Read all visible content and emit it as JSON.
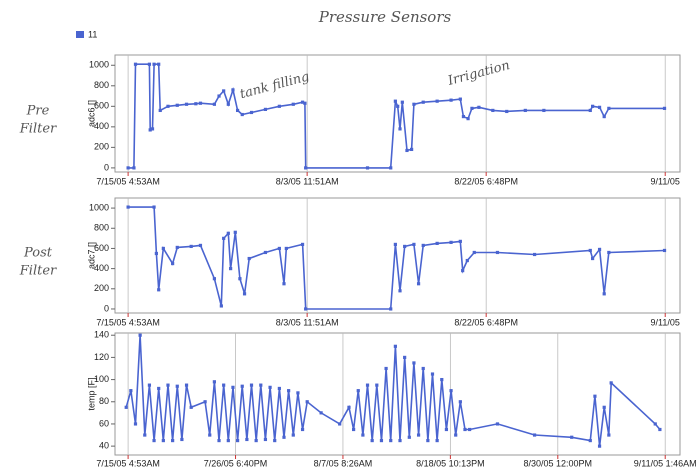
{
  "title": "Pressure Sensors",
  "legend_label": "11",
  "chart_data": [
    {
      "type": "line",
      "panel_label": "Pre Filter",
      "ylabel": "adc6 []",
      "grid": "x",
      "xlim": [
        "2005-07-13T19:00",
        "2005-09-12T16:00"
      ],
      "xticks": [
        {
          "value": "2005-07-15T04:53",
          "label": "7/15/05 4:53AM"
        },
        {
          "value": "2005-08-03T11:51",
          "label": "8/3/05 11:51AM"
        },
        {
          "value": "2005-08-22T18:48",
          "label": "8/22/05 6:48PM"
        },
        {
          "value": "2005-09-11T01:45",
          "label": "9/11/05"
        }
      ],
      "ylim": [
        -40,
        1100
      ],
      "yticks": [
        0,
        200,
        400,
        600,
        800,
        1000
      ],
      "annotations": [
        {
          "text": "tank filling",
          "x": "2005-07-31T00:00",
          "y": 800
        },
        {
          "text": "Irrigation",
          "x": "2005-08-22T00:00",
          "y": 920
        }
      ],
      "series": [
        {
          "name": "11",
          "color": "#4a64d0",
          "x": [
            "2005-07-15T04:53",
            "2005-07-15T20:00",
            "2005-07-16T00:00",
            "2005-07-17T12:00",
            "2005-07-17T14:00",
            "2005-07-17T20:00",
            "2005-07-18T00:00",
            "2005-07-18T12:00",
            "2005-07-18T16:00",
            "2005-07-19T12:00",
            "2005-07-20T12:00",
            "2005-07-21T12:00",
            "2005-07-22T12:00",
            "2005-07-23T00:00",
            "2005-07-24T12:00",
            "2005-07-25T00:00",
            "2005-07-25T12:00",
            "2005-07-26T00:00",
            "2005-07-26T12:00",
            "2005-07-27T00:00",
            "2005-07-27T12:00",
            "2005-07-28T12:00",
            "2005-07-30T00:00",
            "2005-07-31T12:00",
            "2005-08-02T00:00",
            "2005-08-03T00:00",
            "2005-08-03T06:00",
            "2005-08-03T08:00",
            "2005-08-10T00:00",
            "2005-08-12T12:00",
            "2005-08-13T00:00",
            "2005-08-13T06:00",
            "2005-08-13T12:00",
            "2005-08-13T18:00",
            "2005-08-14T06:00",
            "2005-08-14T18:00",
            "2005-08-15T00:00",
            "2005-08-16T00:00",
            "2005-08-17T12:00",
            "2005-08-19T00:00",
            "2005-08-20T00:00",
            "2005-08-20T08:00",
            "2005-08-20T20:00",
            "2005-08-21T06:00",
            "2005-08-22T00:00",
            "2005-08-23T12:00",
            "2005-08-25T00:00",
            "2005-08-27T00:00",
            "2005-08-29T00:00",
            "2005-09-03T00:00",
            "2005-09-03T06:00",
            "2005-09-04T00:00",
            "2005-09-04T12:00",
            "2005-09-05T00:00",
            "2005-09-11T00:00"
          ],
          "values": [
            0,
            0,
            1010,
            1010,
            370,
            380,
            1010,
            1010,
            560,
            600,
            610,
            620,
            625,
            630,
            620,
            700,
            750,
            620,
            760,
            560,
            520,
            540,
            570,
            600,
            620,
            640,
            630,
            0,
            0,
            0,
            650,
            600,
            380,
            640,
            170,
            180,
            620,
            640,
            650,
            660,
            670,
            500,
            480,
            580,
            590,
            560,
            550,
            560,
            560,
            560,
            600,
            590,
            500,
            580,
            580
          ]
        }
      ]
    },
    {
      "type": "line",
      "panel_label": "Post Filter",
      "ylabel": "adc7 []",
      "grid": "x",
      "xlim": [
        "2005-07-13T19:00",
        "2005-09-12T16:00"
      ],
      "xticks": [
        {
          "value": "2005-07-15T04:53",
          "label": "7/15/05 4:53AM"
        },
        {
          "value": "2005-08-03T11:51",
          "label": "8/3/05 11:51AM"
        },
        {
          "value": "2005-08-22T18:48",
          "label": "8/22/05 6:48PM"
        },
        {
          "value": "2005-09-11T01:45",
          "label": "9/11/05"
        }
      ],
      "ylim": [
        -40,
        1100
      ],
      "yticks": [
        0,
        200,
        400,
        600,
        800,
        1000
      ],
      "series": [
        {
          "name": "11",
          "color": "#4a64d0",
          "x": [
            "2005-07-15T04:53",
            "2005-07-18T00:00",
            "2005-07-18T06:00",
            "2005-07-18T12:00",
            "2005-07-19T00:00",
            "2005-07-20T00:00",
            "2005-07-20T12:00",
            "2005-07-22T00:00",
            "2005-07-23T00:00",
            "2005-07-24T12:00",
            "2005-07-25T06:00",
            "2005-07-25T12:00",
            "2005-07-26T00:00",
            "2005-07-26T06:00",
            "2005-07-26T18:00",
            "2005-07-27T06:00",
            "2005-07-27T18:00",
            "2005-07-28T06:00",
            "2005-07-30T00:00",
            "2005-07-31T12:00",
            "2005-08-01T00:00",
            "2005-08-01T06:00",
            "2005-08-03T00:00",
            "2005-08-03T08:00",
            "2005-08-12T12:00",
            "2005-08-13T00:00",
            "2005-08-13T12:00",
            "2005-08-14T00:00",
            "2005-08-15T00:00",
            "2005-08-15T12:00",
            "2005-08-16T00:00",
            "2005-08-17T12:00",
            "2005-08-19T00:00",
            "2005-08-20T00:00",
            "2005-08-20T06:00",
            "2005-08-20T18:00",
            "2005-08-21T12:00",
            "2005-08-24T00:00",
            "2005-08-28T00:00",
            "2005-09-03T00:00",
            "2005-09-03T06:00",
            "2005-09-04T00:00",
            "2005-09-04T12:00",
            "2005-09-05T00:00",
            "2005-09-11T00:00"
          ],
          "values": [
            1010,
            1010,
            550,
            190,
            600,
            450,
            610,
            620,
            630,
            300,
            30,
            700,
            750,
            400,
            760,
            300,
            150,
            500,
            560,
            600,
            250,
            600,
            640,
            0,
            0,
            640,
            180,
            620,
            640,
            250,
            630,
            650,
            660,
            670,
            380,
            480,
            560,
            560,
            540,
            580,
            500,
            590,
            150,
            560,
            580
          ]
        }
      ]
    },
    {
      "type": "line",
      "ylabel": "temp [F]",
      "grid": "x",
      "xlim": [
        "2005-07-13T19:00",
        "2005-09-12T16:00"
      ],
      "xticks": [
        {
          "value": "2005-07-15T04:53",
          "label": "7/15/05 4:53AM"
        },
        {
          "value": "2005-07-26T18:40",
          "label": "7/26/05 6:40PM"
        },
        {
          "value": "2005-08-07T08:26",
          "label": "8/7/05 8:26AM"
        },
        {
          "value": "2005-08-18T22:13",
          "label": "8/18/05 10:13PM"
        },
        {
          "value": "2005-08-30T12:00",
          "label": "8/30/05 12:00PM"
        },
        {
          "value": "2005-09-11T01:46",
          "label": "9/11/05 1:46AM"
        }
      ],
      "ylim": [
        32,
        142
      ],
      "yticks": [
        40,
        60,
        80,
        100,
        120,
        140
      ],
      "series": [
        {
          "name": "11",
          "color": "#4a64d0",
          "x": [
            "2005-07-15T00:00",
            "2005-07-15T12:00",
            "2005-07-16T00:00",
            "2005-07-16T12:00",
            "2005-07-17T00:00",
            "2005-07-17T12:00",
            "2005-07-18T00:00",
            "2005-07-18T12:00",
            "2005-07-19T00:00",
            "2005-07-19T12:00",
            "2005-07-20T00:00",
            "2005-07-20T12:00",
            "2005-07-21T00:00",
            "2005-07-21T12:00",
            "2005-07-22T00:00",
            "2005-07-23T12:00",
            "2005-07-24T00:00",
            "2005-07-24T12:00",
            "2005-07-25T00:00",
            "2005-07-25T12:00",
            "2005-07-26T00:00",
            "2005-07-26T12:00",
            "2005-07-27T00:00",
            "2005-07-27T12:00",
            "2005-07-28T00:00",
            "2005-07-28T12:00",
            "2005-07-29T00:00",
            "2005-07-29T12:00",
            "2005-07-30T00:00",
            "2005-07-30T12:00",
            "2005-07-31T00:00",
            "2005-07-31T12:00",
            "2005-08-01T00:00",
            "2005-08-01T12:00",
            "2005-08-02T00:00",
            "2005-08-02T12:00",
            "2005-08-03T00:00",
            "2005-08-03T12:00",
            "2005-08-05T00:00",
            "2005-08-07T00:00",
            "2005-08-08T00:00",
            "2005-08-08T12:00",
            "2005-08-09T00:00",
            "2005-08-09T12:00",
            "2005-08-10T00:00",
            "2005-08-10T12:00",
            "2005-08-11T00:00",
            "2005-08-11T12:00",
            "2005-08-12T00:00",
            "2005-08-12T12:00",
            "2005-08-13T00:00",
            "2005-08-13T12:00",
            "2005-08-14T00:00",
            "2005-08-14T12:00",
            "2005-08-15T00:00",
            "2005-08-15T12:00",
            "2005-08-16T00:00",
            "2005-08-16T12:00",
            "2005-08-17T00:00",
            "2005-08-17T12:00",
            "2005-08-18T00:00",
            "2005-08-18T12:00",
            "2005-08-19T00:00",
            "2005-08-19T12:00",
            "2005-08-20T00:00",
            "2005-08-20T12:00",
            "2005-08-21T00:00",
            "2005-08-24T00:00",
            "2005-08-28T00:00",
            "2005-09-01T00:00",
            "2005-09-03T00:00",
            "2005-09-03T12:00",
            "2005-09-04T00:00",
            "2005-09-04T12:00",
            "2005-09-05T00:00",
            "2005-09-05T06:00",
            "2005-09-10T00:00",
            "2005-09-10T12:00"
          ],
          "values": [
            75,
            90,
            60,
            140,
            50,
            95,
            45,
            92,
            45,
            95,
            45,
            94,
            46,
            95,
            75,
            80,
            50,
            98,
            45,
            95,
            45,
            93,
            45,
            94,
            46,
            95,
            45,
            95,
            46,
            93,
            45,
            92,
            48,
            90,
            50,
            88,
            55,
            80,
            70,
            60,
            75,
            55,
            90,
            50,
            95,
            45,
            95,
            45,
            110,
            45,
            130,
            45,
            120,
            48,
            115,
            50,
            110,
            45,
            105,
            45,
            100,
            55,
            90,
            50,
            80,
            55,
            55,
            60,
            50,
            48,
            45,
            85,
            40,
            75,
            50,
            97,
            60,
            55
          ]
        }
      ]
    }
  ]
}
